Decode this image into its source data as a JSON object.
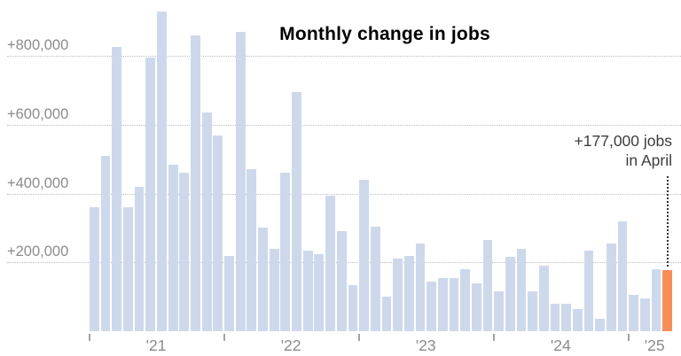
{
  "chart_data": {
    "type": "bar",
    "title": "Monthly change in jobs",
    "unit": "jobs",
    "months": [
      "2021-01",
      "2021-02",
      "2021-03",
      "2021-04",
      "2021-05",
      "2021-06",
      "2021-07",
      "2021-08",
      "2021-09",
      "2021-10",
      "2021-11",
      "2021-12",
      "2022-01",
      "2022-02",
      "2022-03",
      "2022-04",
      "2022-05",
      "2022-06",
      "2022-07",
      "2022-08",
      "2022-09",
      "2022-10",
      "2022-11",
      "2022-12",
      "2023-01",
      "2023-02",
      "2023-03",
      "2023-04",
      "2023-05",
      "2023-06",
      "2023-07",
      "2023-08",
      "2023-09",
      "2023-10",
      "2023-11",
      "2023-12",
      "2024-01",
      "2024-02",
      "2024-03",
      "2024-04",
      "2024-05",
      "2024-06",
      "2024-07",
      "2024-08",
      "2024-09",
      "2024-10",
      "2024-11",
      "2024-12",
      "2025-01",
      "2025-02",
      "2025-03",
      "2025-04"
    ],
    "values": [
      360000,
      510000,
      825000,
      360000,
      420000,
      795000,
      930000,
      485000,
      460000,
      860000,
      635000,
      570000,
      220000,
      870000,
      470000,
      300000,
      240000,
      460000,
      695000,
      235000,
      225000,
      395000,
      290000,
      135000,
      440000,
      305000,
      100000,
      210000,
      220000,
      255000,
      145000,
      155000,
      155000,
      180000,
      140000,
      265000,
      115000,
      215000,
      240000,
      115000,
      190000,
      80000,
      80000,
      65000,
      235000,
      35000,
      255000,
      320000,
      105000,
      95000,
      180000,
      177000
    ],
    "highlight_index": 51,
    "highlight_value": 177000,
    "annotation": {
      "line1": "+177,000 jobs",
      "line2": "in April"
    },
    "y_axis": {
      "range": [
        0,
        940000
      ],
      "grid": true,
      "ticks": [
        {
          "label": "+800,000",
          "value": 800000
        },
        {
          "label": "+600,000",
          "value": 600000
        },
        {
          "label": "+400,000",
          "value": 400000
        },
        {
          "label": "+200,000",
          "value": 200000
        }
      ]
    },
    "x_axis": {
      "year_ticks": [
        {
          "label": "'21",
          "month_index": 0
        },
        {
          "label": "'22",
          "month_index": 12
        },
        {
          "label": "'23",
          "month_index": 24
        },
        {
          "label": "'24",
          "month_index": 36
        },
        {
          "label": "'25",
          "month_index": 48
        }
      ]
    },
    "legend": {
      "visible": false
    },
    "colors": {
      "background": "#ffffff",
      "bar": "#cdd9eb",
      "highlight": "#f98e5a",
      "grid": "#bdbdbd",
      "axis_label": "#8b8b8b",
      "title": "#000000",
      "annotation": "#3d3d3d",
      "leader_line": "#333333",
      "tick": "#a3a3a3"
    }
  }
}
